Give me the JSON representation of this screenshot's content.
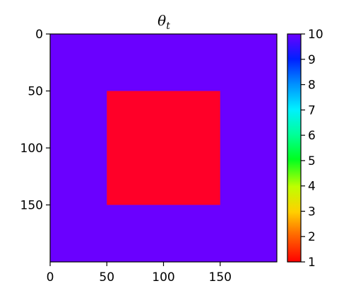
{
  "chart_data": {
    "type": "heatmap",
    "title": "θ",
    "title_subscript": "t",
    "xlim": [
      0,
      200
    ],
    "ylim": [
      200,
      0
    ],
    "x_ticks": [
      0,
      50,
      100,
      150
    ],
    "x_tick_labels": [
      "0",
      "50",
      "100",
      "150"
    ],
    "y_ticks": [
      0,
      50,
      100,
      150
    ],
    "y_tick_labels": [
      "0",
      "50",
      "100",
      "150"
    ],
    "background_value": 10,
    "regions": [
      {
        "x_range": [
          50,
          150
        ],
        "y_range": [
          50,
          150
        ],
        "value": 1
      }
    ],
    "colormap": "gist_rainbow",
    "colorbar": {
      "range": [
        1,
        10
      ],
      "ticks": [
        1,
        2,
        3,
        4,
        5,
        6,
        7,
        8,
        9,
        10
      ],
      "tick_labels": [
        "1",
        "2",
        "3",
        "4",
        "5",
        "6",
        "7",
        "8",
        "9",
        "10"
      ],
      "stops": [
        {
          "offset": 0.0,
          "color": "#ff0000"
        },
        {
          "offset": 0.12,
          "color": "#ff6a00"
        },
        {
          "offset": 0.22,
          "color": "#ffd000"
        },
        {
          "offset": 0.33,
          "color": "#bfff00"
        },
        {
          "offset": 0.45,
          "color": "#00ff20"
        },
        {
          "offset": 0.56,
          "color": "#00ff9a"
        },
        {
          "offset": 0.67,
          "color": "#00f0ff"
        },
        {
          "offset": 0.78,
          "color": "#0090ff"
        },
        {
          "offset": 0.89,
          "color": "#0020ff"
        },
        {
          "offset": 1.0,
          "color": "#6a00ff"
        }
      ]
    },
    "value_colors": {
      "1": "#ff0028",
      "10": "#6a00ff"
    }
  }
}
